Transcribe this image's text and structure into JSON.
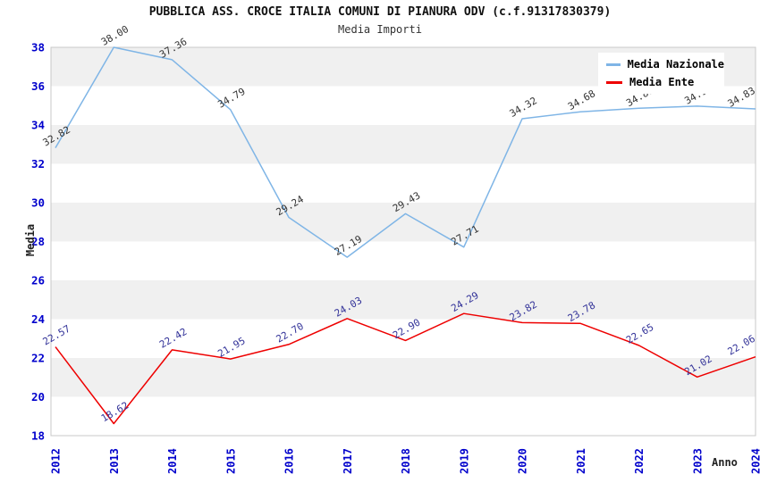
{
  "chart_data": {
    "type": "line",
    "title": "PUBBLICA ASS. CROCE ITALIA COMUNI DI PIANURA ODV (c.f.91317830379)",
    "subtitle": "Media Importi",
    "xlabel": "Anno",
    "ylabel": "Media",
    "ylim": [
      18,
      38
    ],
    "ytick_step": 2,
    "yticks": [
      18,
      20,
      22,
      24,
      26,
      28,
      30,
      32,
      34,
      36,
      38
    ],
    "grid": "alternating-horizontal-bands",
    "legend_position": "top-right",
    "categories": [
      "2012",
      "2013",
      "2014",
      "2015",
      "2016",
      "2017",
      "2018",
      "2019",
      "2020",
      "2021",
      "2022",
      "2023",
      "2024"
    ],
    "series": [
      {
        "name": "Media Nazionale",
        "color": "#7FB5E6",
        "label_color": "#333333",
        "values": [
          32.82,
          38.0,
          37.36,
          34.79,
          29.24,
          27.19,
          29.43,
          27.71,
          34.32,
          34.68,
          34.86,
          34.97,
          34.83
        ],
        "labels": [
          "32.82",
          "38.00",
          "37.36",
          "34.79",
          "29.24",
          "27.19",
          "29.43",
          "27.71",
          "34.32",
          "34.68",
          "34.86",
          "34.97",
          "34.83"
        ]
      },
      {
        "name": "Media Ente",
        "color": "#EE0000",
        "label_color": "#333399",
        "values": [
          22.57,
          18.62,
          22.42,
          21.95,
          22.7,
          24.03,
          22.9,
          24.29,
          23.82,
          23.78,
          22.65,
          21.02,
          22.06
        ],
        "labels": [
          "22.57",
          "18.62",
          "22.42",
          "21.95",
          "22.70",
          "24.03",
          "22.90",
          "24.29",
          "23.82",
          "23.78",
          "22.65",
          "21.02",
          "22.06"
        ]
      }
    ],
    "colors": {
      "tick_label": "#0000CC",
      "band_fill": "#F0F0F0",
      "plot_border": "#C8C8C8",
      "title_text": "#111111"
    }
  }
}
